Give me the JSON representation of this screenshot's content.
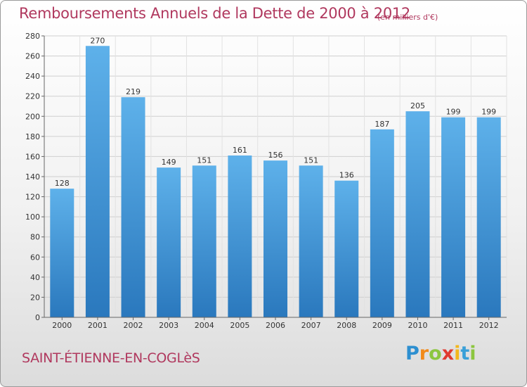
{
  "header": {
    "title": "Remboursements Annuels de la Dette de 2000 à 2012",
    "subtitle": "(en milliers d'€)"
  },
  "footer": {
    "commune": "SAINT-ÉTIENNE-EN-COGLèS",
    "logo": "Proxiti"
  },
  "colors": {
    "bar_light": "#5eb1ea",
    "bar_dark": "#2a78bd",
    "title": "#b0385e",
    "grid": "#cfcfcf"
  },
  "chart_data": {
    "type": "bar",
    "title": "Remboursements Annuels de la Dette de 2000 à 2012",
    "subtitle": "(en milliers d'€)",
    "categories": [
      "2000",
      "2001",
      "2002",
      "2003",
      "2004",
      "2005",
      "2006",
      "2007",
      "2008",
      "2009",
      "2010",
      "2011",
      "2012"
    ],
    "values": [
      128,
      270,
      219,
      149,
      151,
      161,
      156,
      151,
      136,
      187,
      205,
      199,
      199
    ],
    "ylim": [
      0,
      280
    ],
    "yticks": [
      0,
      20,
      40,
      60,
      80,
      100,
      120,
      140,
      160,
      180,
      200,
      220,
      240,
      260,
      280
    ],
    "grid": true,
    "data_labels": true
  }
}
